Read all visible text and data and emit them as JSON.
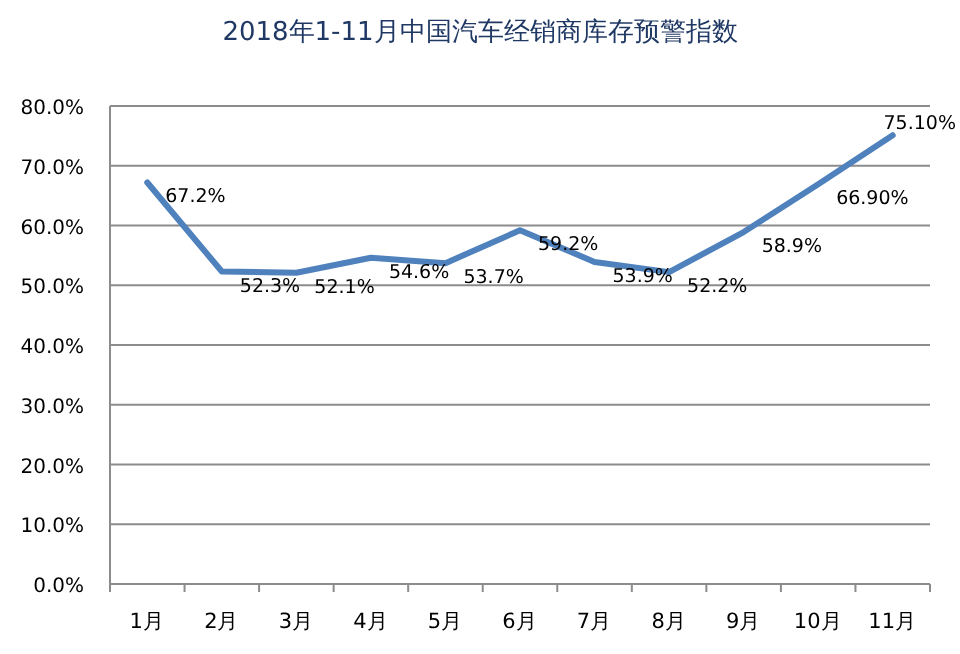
{
  "chart_data": {
    "type": "line",
    "title": "2018年1-11月中国汽车经销商库存预警指数",
    "categories": [
      "1月",
      "2月",
      "3月",
      "4月",
      "5月",
      "6月",
      "7月",
      "8月",
      "9月",
      "10月",
      "11月"
    ],
    "series": [
      {
        "color": "#4f81bd",
        "values": [
          67.2,
          52.3,
          52.1,
          54.6,
          53.7,
          59.2,
          53.9,
          52.2,
          58.9,
          66.9,
          75.1
        ],
        "value_labels": [
          "67.2%",
          "52.3%",
          "52.1%",
          "54.6%",
          "53.7%",
          "59.2%",
          "53.9%",
          "52.2%",
          "58.9%",
          "66.90%",
          "75.10%"
        ]
      }
    ],
    "ylim": [
      0,
      80
    ],
    "yticks": [
      {
        "value": 0,
        "label": "0.0%"
      },
      {
        "value": 10,
        "label": "10.0%"
      },
      {
        "value": 20,
        "label": "20.0%"
      },
      {
        "value": 30,
        "label": "30.0%"
      },
      {
        "value": 40,
        "label": "40.0%"
      },
      {
        "value": 50,
        "label": "50.0%"
      },
      {
        "value": 60,
        "label": "60.0%"
      },
      {
        "value": 70,
        "label": "70.0%"
      },
      {
        "value": 80,
        "label": "80.0%"
      }
    ],
    "grid": "y",
    "marker": "none",
    "line_style": "solid"
  }
}
